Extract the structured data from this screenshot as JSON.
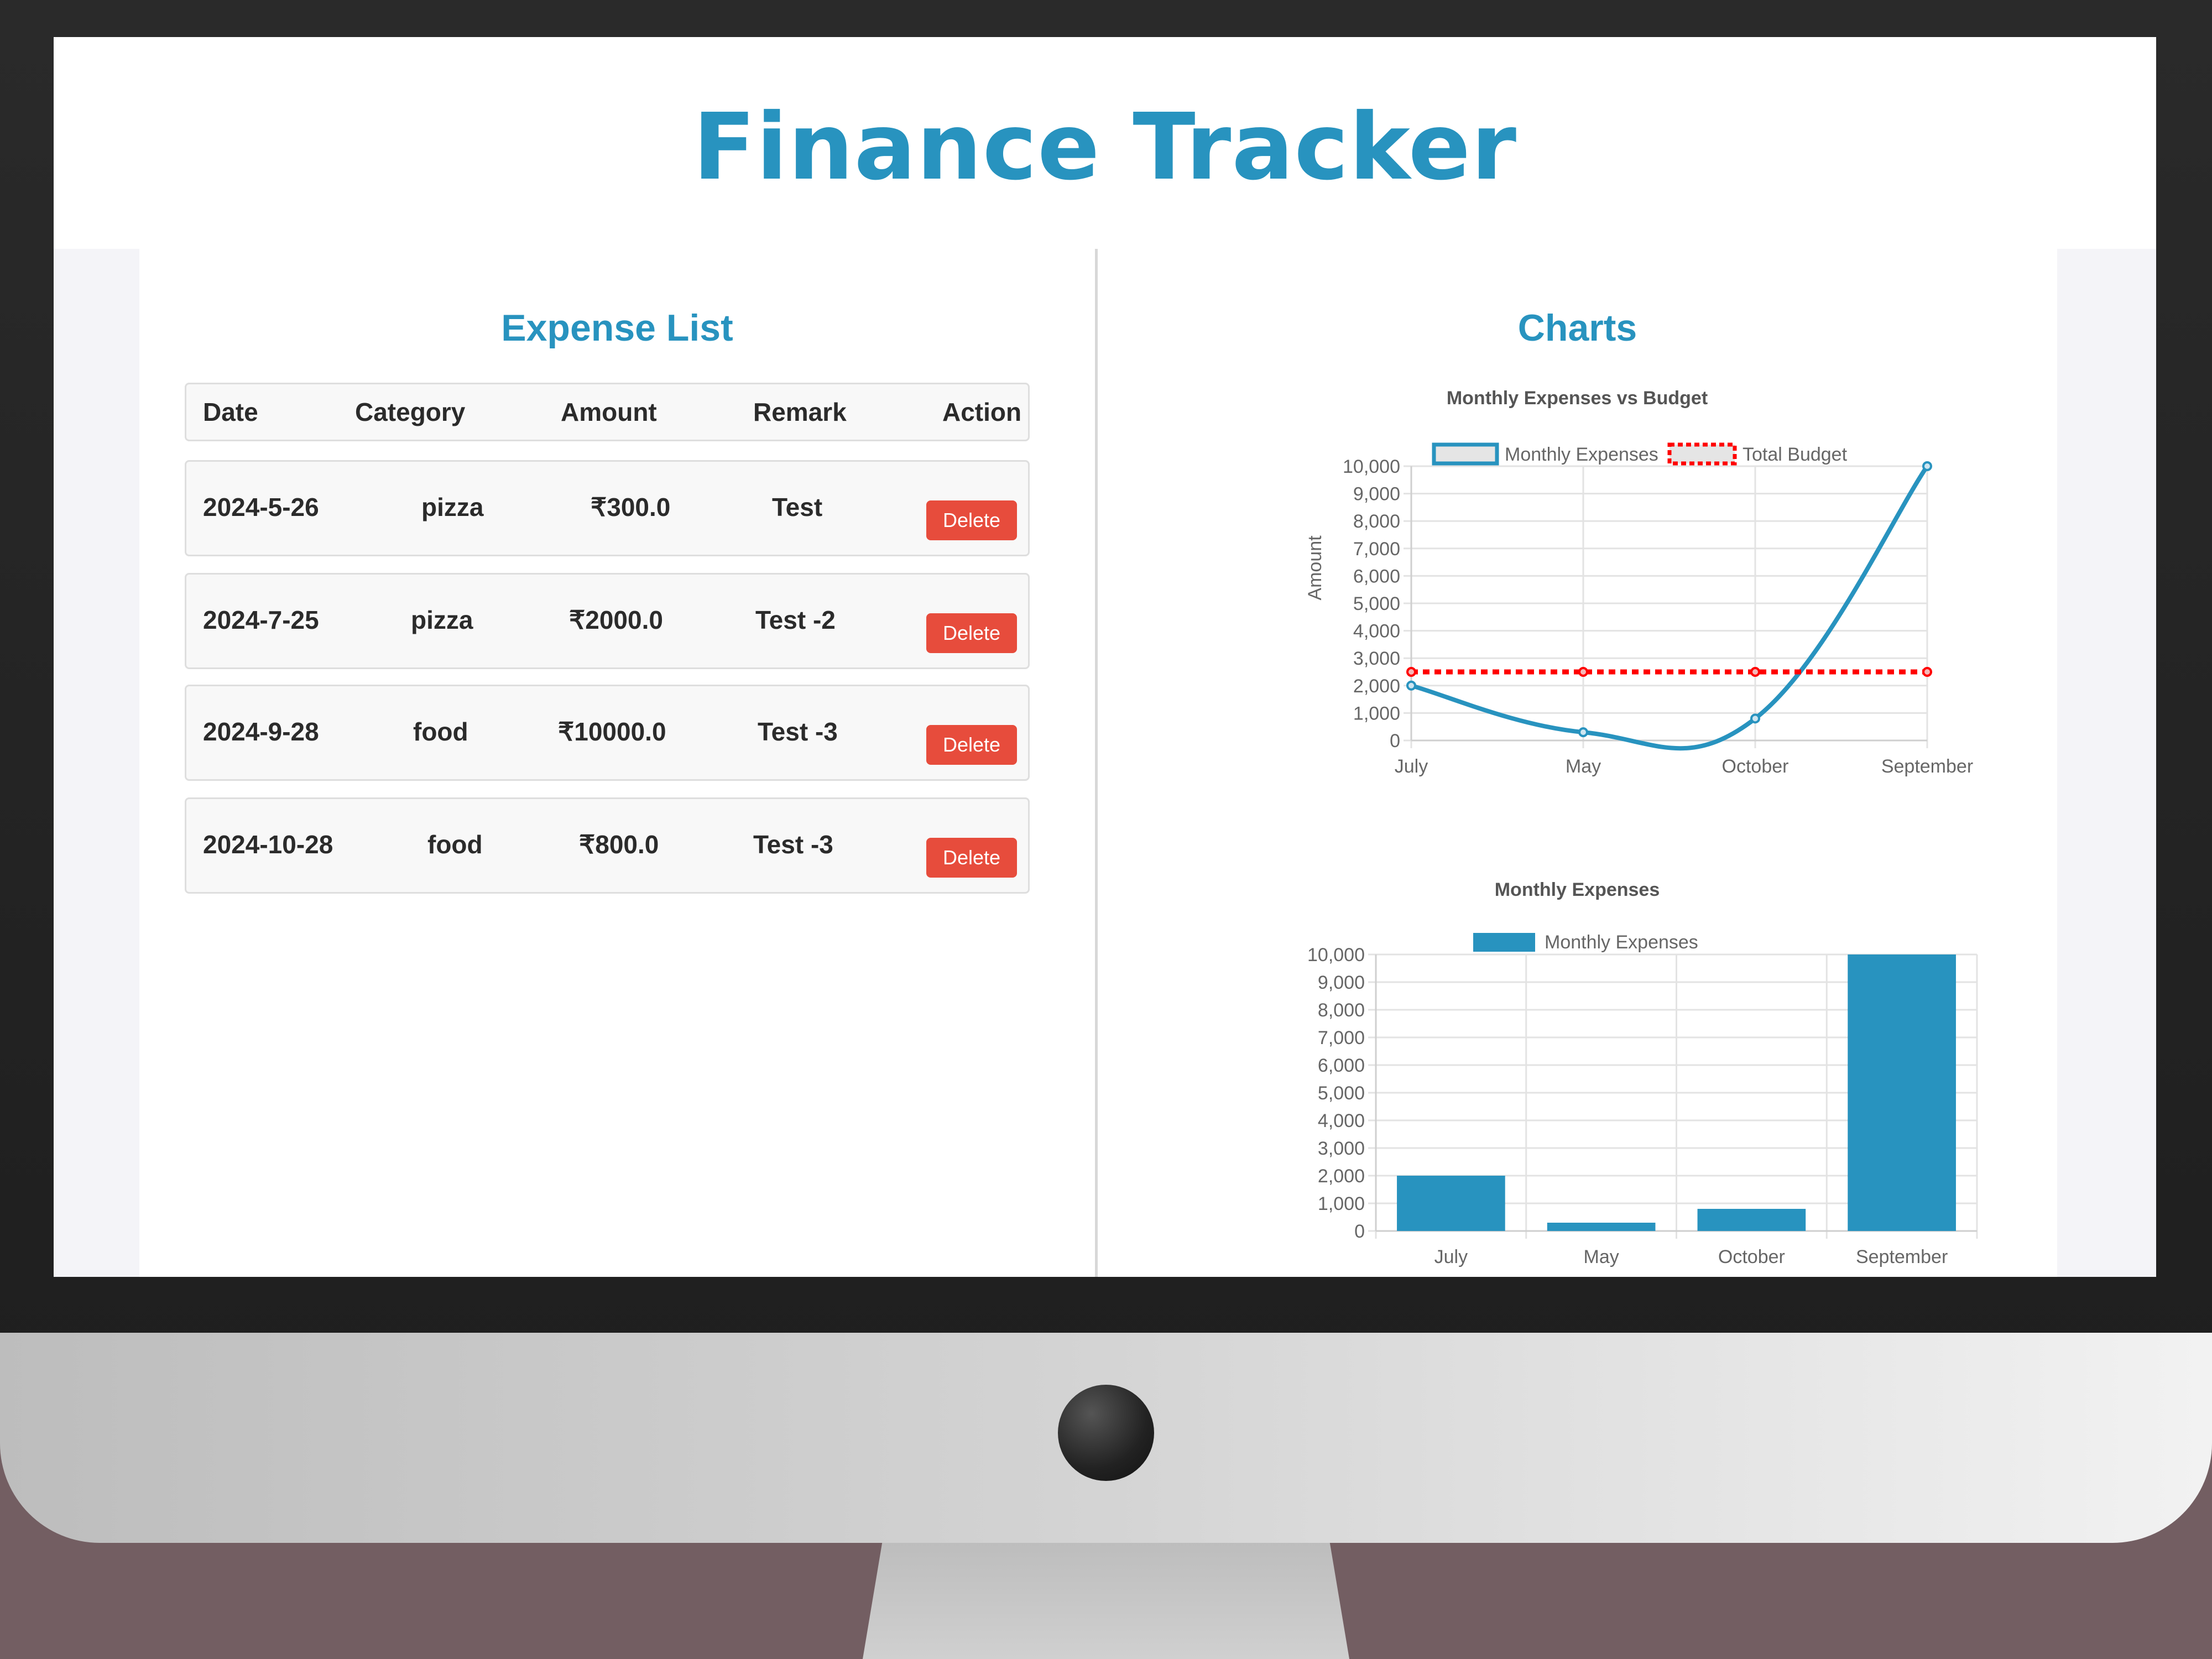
{
  "app": {
    "title": "Finance Tracker"
  },
  "expense_list": {
    "title": "Expense List",
    "columns": [
      "Date",
      "Category",
      "Amount",
      "Remark",
      "Action"
    ],
    "rows": [
      {
        "date": "2024-5-26",
        "category": "pizza",
        "amount": "₹300.0",
        "remark": "Test",
        "action": "Delete"
      },
      {
        "date": "2024-7-25",
        "category": "pizza",
        "amount": "₹2000.0",
        "remark": "Test -2",
        "action": "Delete"
      },
      {
        "date": "2024-9-28",
        "category": "food",
        "amount": "₹10000.0",
        "remark": "Test -3",
        "action": "Delete"
      },
      {
        "date": "2024-10-28",
        "category": "food",
        "amount": "₹800.0",
        "remark": "Test -3",
        "action": "Delete"
      }
    ]
  },
  "charts": {
    "title": "Charts"
  },
  "colors": {
    "accent": "#2893bf",
    "delete": "#e74c3c",
    "budget_line": "#ff0000"
  },
  "chart_data": [
    {
      "type": "line",
      "title": "Monthly Expenses vs Budget",
      "categories": [
        "July",
        "May",
        "October",
        "September"
      ],
      "series": [
        {
          "name": "Monthly Expenses",
          "values": [
            2000,
            300,
            800,
            10000
          ],
          "color": "#2893bf",
          "dashed": false
        },
        {
          "name": "Total Budget",
          "values": [
            2500,
            2500,
            2500,
            2500
          ],
          "color": "#ff0000",
          "dashed": true
        }
      ],
      "ylabel": "Amount",
      "xlabel": "",
      "ylim": [
        0,
        10000
      ],
      "yticks": [
        "0",
        "1,000",
        "2,000",
        "3,000",
        "4,000",
        "5,000",
        "6,000",
        "7,000",
        "8,000",
        "9,000",
        "10,000"
      ],
      "grid": true,
      "legend": "top"
    },
    {
      "type": "bar",
      "title": "Monthly Expenses",
      "categories": [
        "July",
        "May",
        "October",
        "September"
      ],
      "series": [
        {
          "name": "Monthly Expenses",
          "values": [
            2000,
            300,
            800,
            10000
          ],
          "color": "#2893bf"
        }
      ],
      "ylabel": "",
      "xlabel": "",
      "ylim": [
        0,
        10000
      ],
      "yticks": [
        "0",
        "1,000",
        "2,000",
        "3,000",
        "4,000",
        "5,000",
        "6,000",
        "7,000",
        "8,000",
        "9,000",
        "10,000"
      ],
      "grid": true,
      "legend": "top"
    }
  ]
}
